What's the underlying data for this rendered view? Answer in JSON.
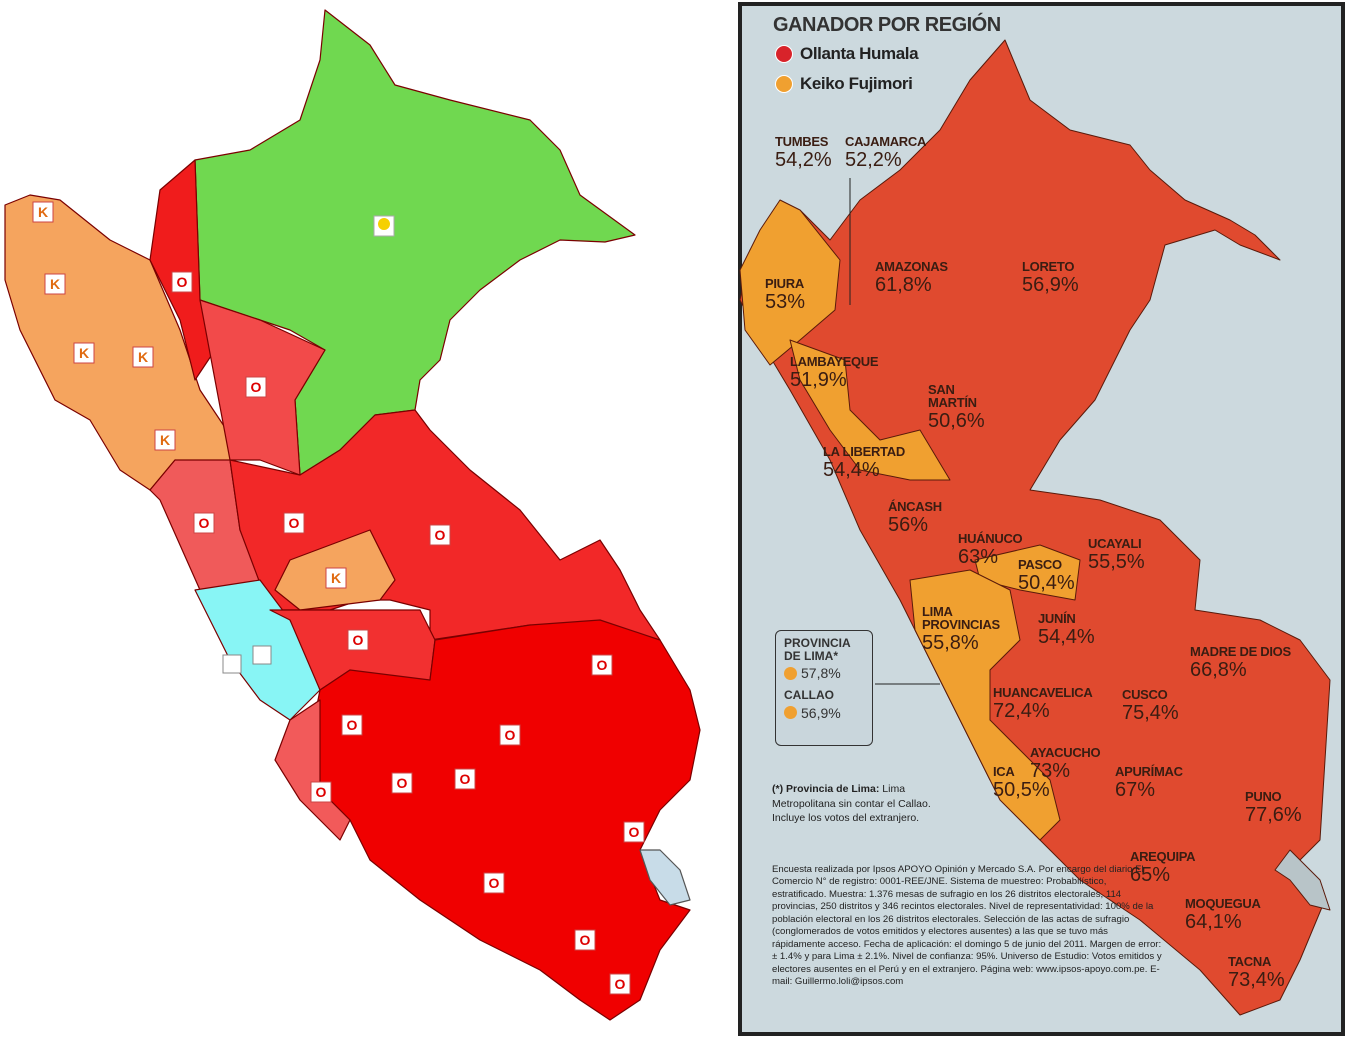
{
  "left_map": {
    "markers": [
      "K",
      "K",
      "K",
      "K",
      "K",
      "K",
      "O",
      "O",
      "O",
      "O",
      "O",
      "O",
      "O",
      "O",
      "O",
      "O",
      "O",
      "O",
      "O",
      "O",
      "O",
      "O"
    ]
  },
  "right_map": {
    "title": "GANADOR POR REGIÓN",
    "legend": [
      {
        "name": "Ollanta Humala",
        "color": "#d8232a"
      },
      {
        "name": "Keiko Fujimori",
        "color": "#f0a030"
      }
    ],
    "regions": [
      {
        "name": "TUMBES",
        "pct": "54,2%"
      },
      {
        "name": "CAJAMARCA",
        "pct": "52,2%"
      },
      {
        "name": "PIURA",
        "pct": "53%"
      },
      {
        "name": "AMAZONAS",
        "pct": "61,8%"
      },
      {
        "name": "LORETO",
        "pct": "56,9%"
      },
      {
        "name": "LAMBAYEQUE",
        "pct": "51,9%"
      },
      {
        "name": "SAN MARTÍN",
        "pct": "50,6%"
      },
      {
        "name": "LA LIBERTAD",
        "pct": "54,4%"
      },
      {
        "name": "ÁNCASH",
        "pct": "56%"
      },
      {
        "name": "HUÁNUCO",
        "pct": "63%"
      },
      {
        "name": "UCAYALI",
        "pct": "55,5%"
      },
      {
        "name": "PASCO",
        "pct": "50,4%"
      },
      {
        "name": "LIMA PROVINCIAS",
        "pct": "55,8%"
      },
      {
        "name": "JUNÍN",
        "pct": "54,4%"
      },
      {
        "name": "MADRE DE DIOS",
        "pct": "66,8%"
      },
      {
        "name": "HUANCAVELICA",
        "pct": "72,4%"
      },
      {
        "name": "CUSCO",
        "pct": "75,4%"
      },
      {
        "name": "AYACUCHO",
        "pct": "73%"
      },
      {
        "name": "APURÍMAC",
        "pct": "67%"
      },
      {
        "name": "ICA",
        "pct": "50,5%"
      },
      {
        "name": "PUNO",
        "pct": "77,6%"
      },
      {
        "name": "AREQUIPA",
        "pct": "65%"
      },
      {
        "name": "MOQUEGUA",
        "pct": "64,1%"
      },
      {
        "name": "TACNA",
        "pct": "73,4%"
      }
    ],
    "inset": [
      {
        "name": "PROVINCIA DE LIMA*",
        "pct": "57,8%"
      },
      {
        "name": "CALLAO",
        "pct": "56,9%"
      }
    ],
    "footnote": {
      "label": "(*) Provincia de Lima:",
      "text": "Lima Metropolitana sin contar el Callao. Incluye los votos del extranjero."
    },
    "methodology": "Encuesta realizada por Ipsos APOYO Opinión y Mercado S.A. Por encargo del diario El Comercio N° de registro: 0001-REE/JNE. Sistema de muestreo: Probabilístico, estratificado. Muestra: 1.376 mesas de sufragio en los 26 distritos electorales, 114 provincias, 250 distritos y 346 recintos electorales. Nivel de representatividad: 100% de la población electoral en los 26 distritos electorales. Selección de las actas de sufragio (conglomerados de votos emitidos y electores ausentes) a las que se tuvo más rápidamente acceso. Fecha de aplicación: el domingo 5 de junio del 2011. Margen de error: ± 1.4% y para Lima ± 2.1%. Nivel de confianza: 95%. Universo de Estudio: Votos emitidos y electores ausentes en el Perú y en el extranjero. Página web: www.ipsos-apoyo.com.pe. E-mail: Guillermo.loli@ipsos.com"
  }
}
